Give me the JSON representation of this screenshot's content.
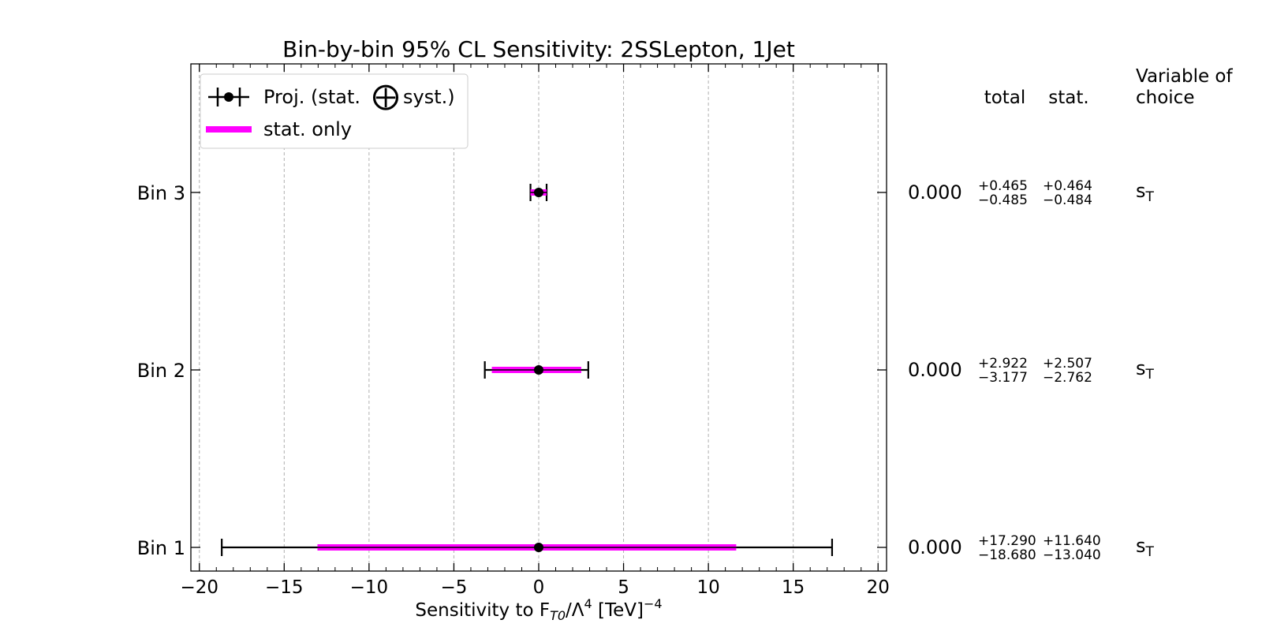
{
  "chart_data": {
    "type": "errorbar",
    "title": "Bin-by-bin 95% CL Sensitivity: 2SSLepton, 1Jet",
    "xlabel": "Sensitivity to F_T0/Λ^4 [TeV]^-4",
    "xlabel_parts": {
      "main": "Sensitivity to F",
      "sub": "T0",
      "mid": "/Λ",
      "sup1": "4",
      "tail": " [TeV]",
      "sup2": "−4"
    },
    "xlim": [
      -20.5,
      20.5
    ],
    "xticks": [
      -20,
      -15,
      -10,
      -5,
      0,
      5,
      10,
      15,
      20
    ],
    "xtick_labels": [
      "−20",
      "−15",
      "−10",
      "−5",
      "0",
      "5",
      "10",
      "15",
      "20"
    ],
    "grid": "vertical dashed",
    "categories": [
      "Bin 1",
      "Bin 2",
      "Bin 3"
    ],
    "series": [
      {
        "name": "Proj. (stat. ⨁ syst.)",
        "color": "#000000",
        "central": [
          0.0,
          0.0,
          0.0
        ],
        "err_plus": [
          17.29,
          2.922,
          0.465
        ],
        "err_minus": [
          18.68,
          3.177,
          0.485
        ]
      },
      {
        "name": "stat. only",
        "color": "#ff00ff",
        "central": [
          0.0,
          0.0,
          0.0
        ],
        "err_plus": [
          11.64,
          2.507,
          0.464
        ],
        "err_minus": [
          13.04,
          2.762,
          0.484
        ]
      }
    ],
    "legend": {
      "position": "top-left",
      "entries": [
        {
          "pre": "Proj. (stat.",
          "symbol": "⨁",
          "post": "syst.)"
        },
        {
          "label": "stat. only"
        }
      ]
    },
    "table": {
      "headers": {
        "total": "total",
        "stat": "stat.",
        "variable_line1": "Variable of",
        "variable_line2": "choice"
      },
      "rows": [
        {
          "bin": "Bin 3",
          "central": "0.000",
          "total_plus": "+0.465",
          "total_minus": "−0.485",
          "stat_plus": "+0.464",
          "stat_minus": "−0.484",
          "variable": "s",
          "variable_sub": "T"
        },
        {
          "bin": "Bin 2",
          "central": "0.000",
          "total_plus": "+2.922",
          "total_minus": "−3.177",
          "stat_plus": "+2.507",
          "stat_minus": "−2.762",
          "variable": "s",
          "variable_sub": "T"
        },
        {
          "bin": "Bin 1",
          "central": "0.000",
          "total_plus": "+17.290",
          "total_minus": "−18.680",
          "stat_plus": "+11.640",
          "stat_minus": "−13.040",
          "variable": "s",
          "variable_sub": "T"
        }
      ]
    }
  }
}
